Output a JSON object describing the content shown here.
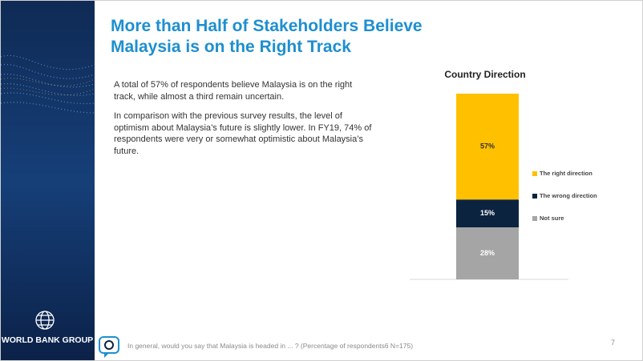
{
  "slide": {
    "title": "More than Half of Stakeholders Believe Malaysia is on the Right Track",
    "paragraphs": [
      "A total of 57% of respondents believe Malaysia is on the right track, while almost a third remain uncertain.",
      "In comparison with the previous survey results, the level of optimism about Malaysia’s future is slightly lower. In FY19, 74% of respondents were very or somewhat optimistic about Malaysia’s future."
    ],
    "logo": "WORLD BANK GROUP",
    "footnote": "In general, would you say that Malaysia is headed in ... ? (Percentage of respondents6 N=175)",
    "page_number": "7"
  },
  "chart_data": {
    "type": "stacked_bar",
    "title": "Country Direction",
    "categories": [
      null
    ],
    "series": [
      {
        "name": "The right direction",
        "color": "#ffc000",
        "values": [
          57
        ],
        "value_labels": [
          "57%"
        ]
      },
      {
        "name": "The wrong direction",
        "color": "#0c2340",
        "values": [
          15
        ],
        "value_labels": [
          "15%"
        ]
      },
      {
        "name": "Not sure",
        "color": "#a5a5a5",
        "values": [
          28
        ],
        "value_labels": [
          "28%"
        ]
      }
    ],
    "ylim": [
      0,
      100
    ],
    "legend": "right"
  }
}
